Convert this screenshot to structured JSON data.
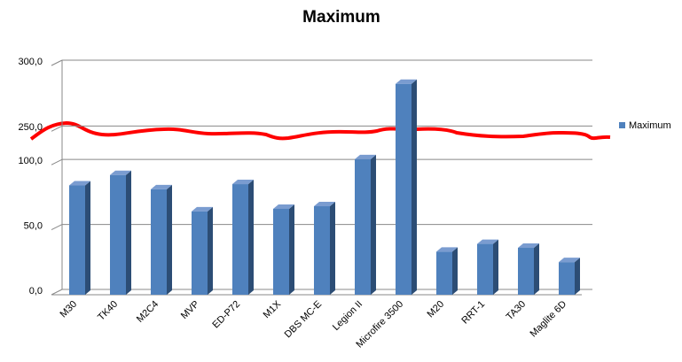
{
  "chart_data": {
    "type": "bar",
    "title": "Maximum",
    "categories": [
      "M30",
      "TK40",
      "M2C4",
      "MVP",
      "ED-P72",
      "M1X",
      "DBS MC-E",
      "Legion II",
      "Microfire 3500",
      "M20",
      "RRT-1",
      "TA30",
      "Maglite 6D"
    ],
    "series": [
      {
        "name": "Maximum",
        "color": "#4f81bd",
        "values": [
          80,
          88,
          77,
          60,
          81,
          62,
          64,
          101,
          282,
          29,
          35,
          32,
          21
        ]
      }
    ],
    "ylim": [
      0,
      300
    ],
    "yticks": [
      {
        "value": 0,
        "label": "0,0"
      },
      {
        "value": 50,
        "label": "50,0"
      },
      {
        "value": 100,
        "label": "100,0"
      },
      {
        "value": 250,
        "label": "250,0"
      },
      {
        "value": 300,
        "label": "300,0"
      }
    ],
    "axis_break": [
      100,
      250
    ],
    "grid": true,
    "legend": "right"
  }
}
